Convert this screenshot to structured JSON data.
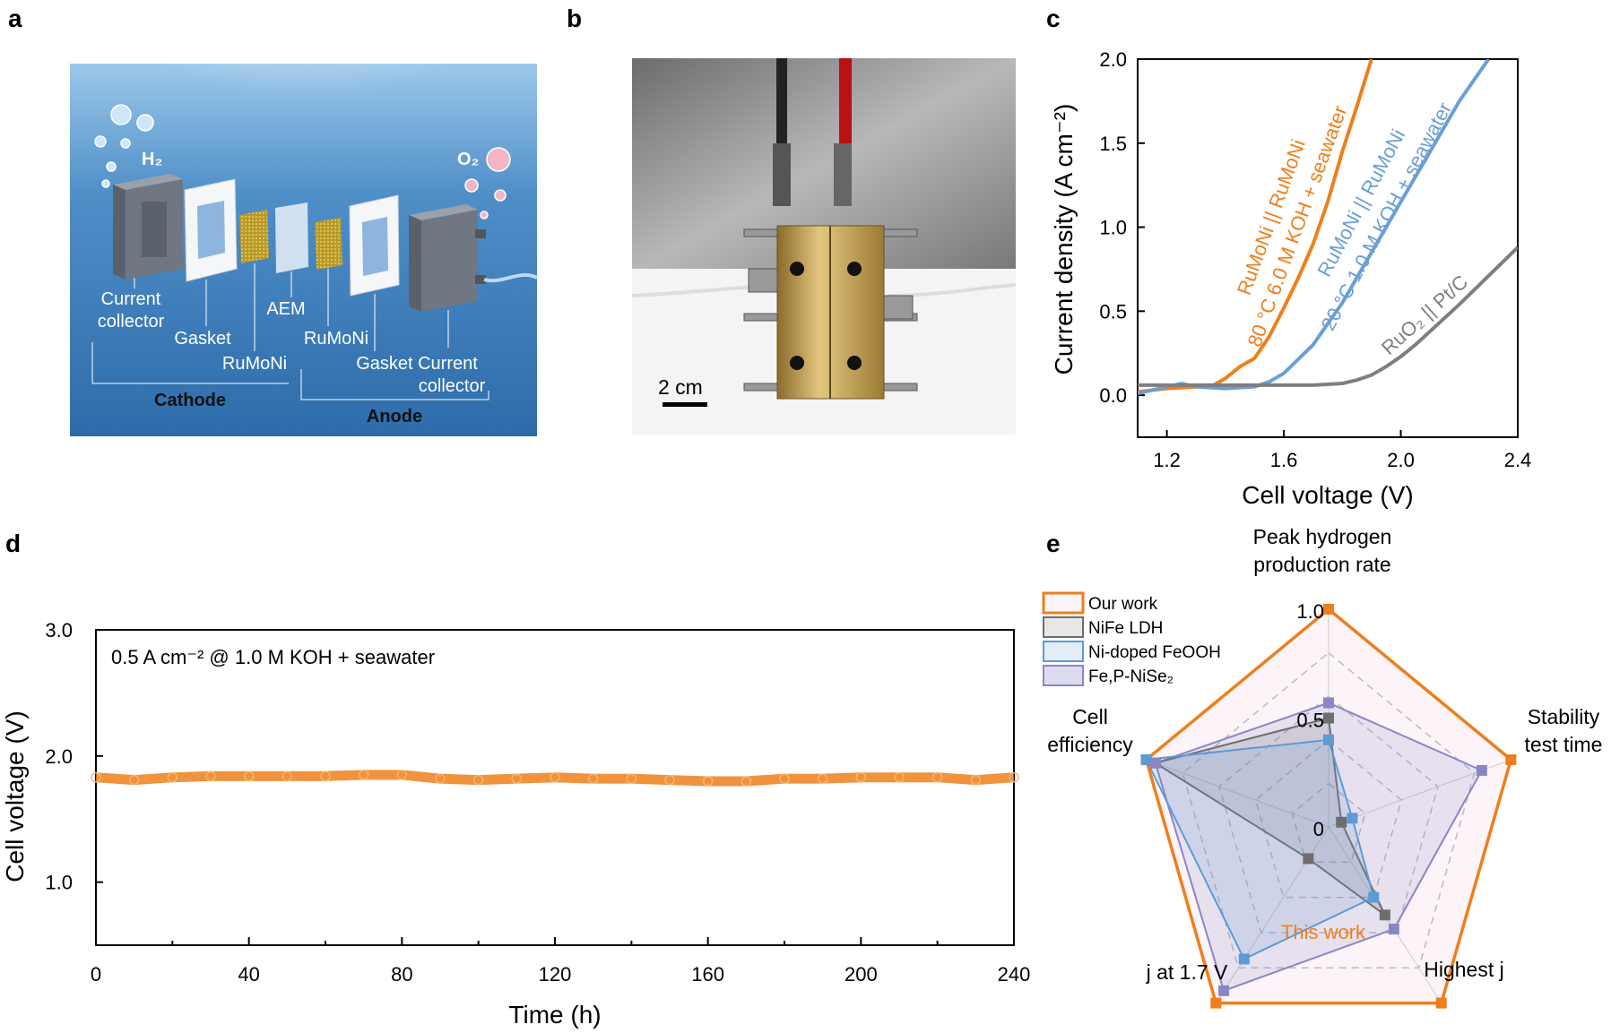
{
  "panels": {
    "letters": [
      "a",
      "b",
      "c",
      "d",
      "e"
    ],
    "a": {
      "h2": "H₂",
      "o2": "O₂",
      "current_collector_1": [
        "Current",
        "collector"
      ],
      "gasket_1": "Gasket",
      "rumoni_1": "RuMoNi",
      "aem": "AEM",
      "rumoni_2": "RuMoNi",
      "gasket_current_2": "Gasket Current",
      "collector_2": "collector",
      "cathode": "Cathode",
      "anode": "Anode"
    },
    "b": {
      "scale_bar": "2 cm"
    }
  },
  "colors": {
    "orange": "#EE7F1B",
    "blue": "#6A9FD4",
    "gray": "#7F7F7F",
    "purple": "#8A86C6",
    "nife": "#6E6E6E",
    "nifeooh": "#5C9BD5"
  },
  "chart_data": [
    {
      "panel": "c",
      "type": "line",
      "xlabel": "Cell voltage (V)",
      "ylabel": "Current density (A cm⁻²)",
      "xlim": [
        1.1,
        2.4
      ],
      "ylim": [
        -0.25,
        2.0
      ],
      "xticks": [
        "1.2",
        "1.6",
        "2.0",
        "2.4"
      ],
      "yticks": [
        "0.0",
        "0.5",
        "1.0",
        "1.5",
        "2.0"
      ],
      "grid": false,
      "series": [
        {
          "name": "80 °C 6.0 M KOH + seawater",
          "label2": "RuMoNi || RuMoNi",
          "color": "#EE7F1B",
          "x": [
            1.1,
            1.2,
            1.3,
            1.36,
            1.4,
            1.45,
            1.5,
            1.55,
            1.6,
            1.65,
            1.7,
            1.75,
            1.8,
            1.85,
            1.9
          ],
          "y": [
            0.02,
            0.04,
            0.05,
            0.06,
            0.1,
            0.17,
            0.22,
            0.35,
            0.52,
            0.7,
            0.9,
            1.15,
            1.45,
            1.72,
            2.0
          ]
        },
        {
          "name": "20 °C 1.0 M KOH + seawater",
          "label2": "RuMoNi || RuMoNi",
          "color": "#6A9FD4",
          "x": [
            1.1,
            1.2,
            1.25,
            1.3,
            1.4,
            1.5,
            1.55,
            1.6,
            1.7,
            1.8,
            1.9,
            2.0,
            2.1,
            2.2,
            2.3
          ],
          "y": [
            0.01,
            0.05,
            0.07,
            0.05,
            0.04,
            0.05,
            0.08,
            0.13,
            0.3,
            0.55,
            0.85,
            1.15,
            1.45,
            1.75,
            2.0
          ]
        },
        {
          "name": "RuO₂ || Pt/C",
          "color": "#7F7F7F",
          "x": [
            1.1,
            1.3,
            1.5,
            1.7,
            1.8,
            1.85,
            1.9,
            1.95,
            2.0,
            2.05,
            2.1,
            2.2,
            2.3,
            2.4
          ],
          "y": [
            0.06,
            0.06,
            0.06,
            0.06,
            0.07,
            0.09,
            0.12,
            0.17,
            0.23,
            0.3,
            0.38,
            0.54,
            0.71,
            0.88
          ]
        }
      ]
    },
    {
      "panel": "d",
      "type": "scatter",
      "xlabel": "Time (h)",
      "ylabel": "Cell voltage (V)",
      "annotation": "0.5 A cm⁻² @ 1.0 M KOH + seawater",
      "xlim": [
        0,
        240
      ],
      "ylim": [
        0.5,
        3.0
      ],
      "xticks": [
        "0",
        "40",
        "80",
        "120",
        "160",
        "200",
        "240"
      ],
      "yticks": [
        "1.0",
        "2.0",
        "3.0"
      ],
      "grid": false,
      "series": [
        {
          "color": "#EE7F1B",
          "x": [
            0,
            10,
            20,
            30,
            40,
            50,
            60,
            70,
            80,
            90,
            100,
            110,
            120,
            130,
            140,
            150,
            160,
            170,
            180,
            190,
            200,
            210,
            220,
            230,
            240
          ],
          "y": [
            1.83,
            1.81,
            1.83,
            1.84,
            1.84,
            1.84,
            1.84,
            1.85,
            1.85,
            1.82,
            1.81,
            1.82,
            1.83,
            1.82,
            1.82,
            1.81,
            1.8,
            1.8,
            1.82,
            1.82,
            1.83,
            1.83,
            1.83,
            1.81,
            1.83
          ]
        }
      ]
    },
    {
      "panel": "e",
      "type": "radar",
      "axes": [
        {
          "label": [
            "Peak hydrogen",
            "production rate"
          ]
        },
        {
          "label": [
            "Stability",
            "test time"
          ]
        },
        {
          "label": [
            "Highest j"
          ]
        },
        {
          "label": [
            "j at 1.7 V"
          ]
        },
        {
          "label": [
            "Cell",
            "efficiency"
          ]
        }
      ],
      "rticks": [
        "1.0",
        "0.5",
        "0"
      ],
      "rlim": [
        0,
        1.0
      ],
      "annotation": "This work",
      "legend_position": "top-left",
      "series": [
        {
          "name": "Our work",
          "color": "#EE7F1B",
          "fill": "#FCF4F8",
          "values": [
            1.0,
            1.0,
            1.0,
            1.0,
            1.0
          ]
        },
        {
          "name": "NiFe LDH",
          "color": "#6E6E6E",
          "fill": "#E8E8E8",
          "values": [
            0.5,
            0.07,
            0.5,
            0.18,
            0.95
          ]
        },
        {
          "name": "Ni-doped FeOOH",
          "color": "#5C9BD5",
          "fill": "#E4EEF8",
          "values": [
            0.4,
            0.13,
            0.4,
            0.75,
            1.0
          ]
        },
        {
          "name": "Fe,P-NiSe₂",
          "color": "#8A86C6",
          "fill": "#DCDCEE",
          "values": [
            0.57,
            0.84,
            0.58,
            0.93,
            0.95
          ]
        }
      ]
    }
  ]
}
